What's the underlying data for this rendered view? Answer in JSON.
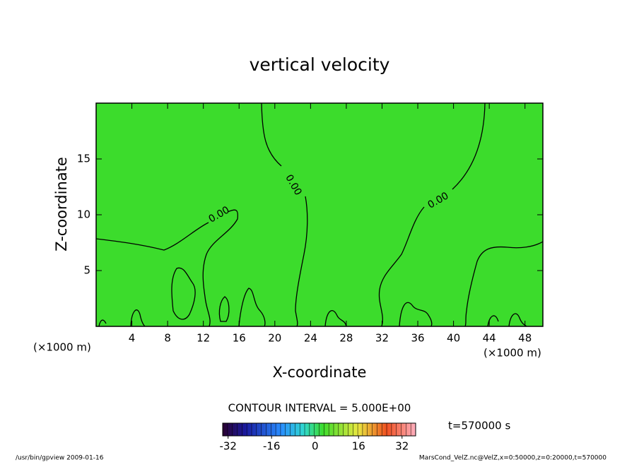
{
  "chart_data": {
    "type": "contour",
    "title": "vertical velocity",
    "xlabel": "X-coordinate",
    "ylabel": "Z-coordinate",
    "x_unit_label": "(×1000 m)",
    "xlim": [
      0,
      50
    ],
    "xticks": [
      4,
      8,
      12,
      16,
      20,
      24,
      28,
      32,
      36,
      40,
      44,
      48
    ],
    "ylim": [
      0,
      20
    ],
    "yticks": [
      5,
      10,
      15
    ],
    "levels": [
      0
    ],
    "value_labels": [
      "0.00"
    ],
    "fill_color": "#3cdc2c",
    "contour_interval_label": "CONTOUR INTERVAL = 5.000E+00",
    "time_label": "t=570000 s",
    "clim": [
      -34,
      37
    ],
    "colorbar_ticks": [
      -32,
      -16,
      0,
      16,
      32
    ],
    "footer_left": "/usr/bin/gpview  2009-01-16",
    "footer_right": "MarsCond_VelZ.nc@VelZ,x=0:50000,z=0:20000,t=570000"
  }
}
